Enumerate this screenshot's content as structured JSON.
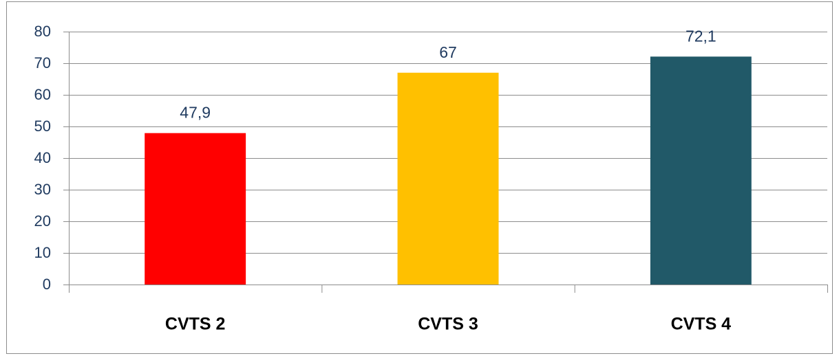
{
  "chart_data": {
    "type": "bar",
    "categories": [
      "CVTS 2",
      "CVTS 3",
      "CVTS 4"
    ],
    "values": [
      47.9,
      67,
      72.1
    ],
    "value_labels": [
      "47,9",
      "67",
      "72,1"
    ],
    "colors": [
      "#ff0000",
      "#ffc000",
      "#215968"
    ],
    "ylim": [
      0,
      80
    ],
    "yticks": [
      0,
      10,
      20,
      30,
      40,
      50,
      60,
      70,
      80
    ],
    "grid": true
  }
}
